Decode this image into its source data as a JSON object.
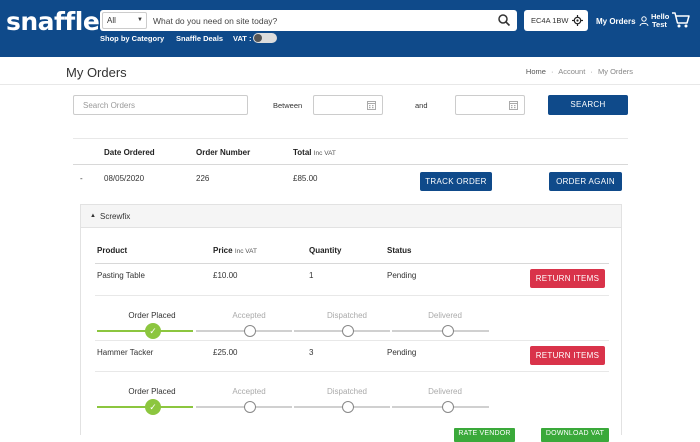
{
  "header": {
    "logo": "snaffle",
    "search": {
      "category": "All",
      "placeholder": "What do you need on site today?"
    },
    "postcode": "EC4A 1BW",
    "my_orders": "My Orders",
    "hello_line1": "Hello",
    "hello_line2": "Test",
    "nav": {
      "shop_by_category": "Shop by Category",
      "deals": "Snaffle Deals",
      "vat": "VAT :"
    },
    "vat_toggle_on": false
  },
  "page": {
    "title": "My Orders",
    "breadcrumb": [
      "Home",
      "Account",
      "My Orders"
    ],
    "breadcrumb_sep": "·"
  },
  "filters": {
    "search_placeholder": "Search Orders",
    "between": "Between",
    "and": "and",
    "search_button": "SEARCH"
  },
  "orders_table": {
    "headers": {
      "date": "Date Ordered",
      "number": "Order Number",
      "total": "Total",
      "total_suffix": "Inc VAT"
    },
    "order": {
      "toggle": "-",
      "date": "08/05/2020",
      "number": "226",
      "total": "£85.00",
      "track_button": "TRACK ORDER",
      "again_button": "ORDER AGAIN"
    }
  },
  "vendor_panel": {
    "name": "Screwfix",
    "headers": {
      "product": "Product",
      "price": "Price",
      "price_suffix": "Inc VAT",
      "quantity": "Quantity",
      "status": "Status"
    },
    "items": [
      {
        "product": "Pasting Table",
        "price": "£10.00",
        "quantity": "1",
        "status": "Pending",
        "return_button": "RETURN ITEMS"
      },
      {
        "product": "Hammer Tacker",
        "price": "£25.00",
        "quantity": "3",
        "status": "Pending",
        "return_button": "RETURN ITEMS"
      }
    ],
    "tracking_steps": [
      "Order Placed",
      "Accepted",
      "Dispatched",
      "Delivered"
    ],
    "tracking_progress": 0.25,
    "footer_buttons": {
      "rate": "RATE VENDOR",
      "download": "DOWNLOAD VAT"
    }
  },
  "colors": {
    "brand": "#0f4a8a",
    "return": "#d9334a",
    "progress": "#8cc63f",
    "action_green": "#3aa93a"
  }
}
